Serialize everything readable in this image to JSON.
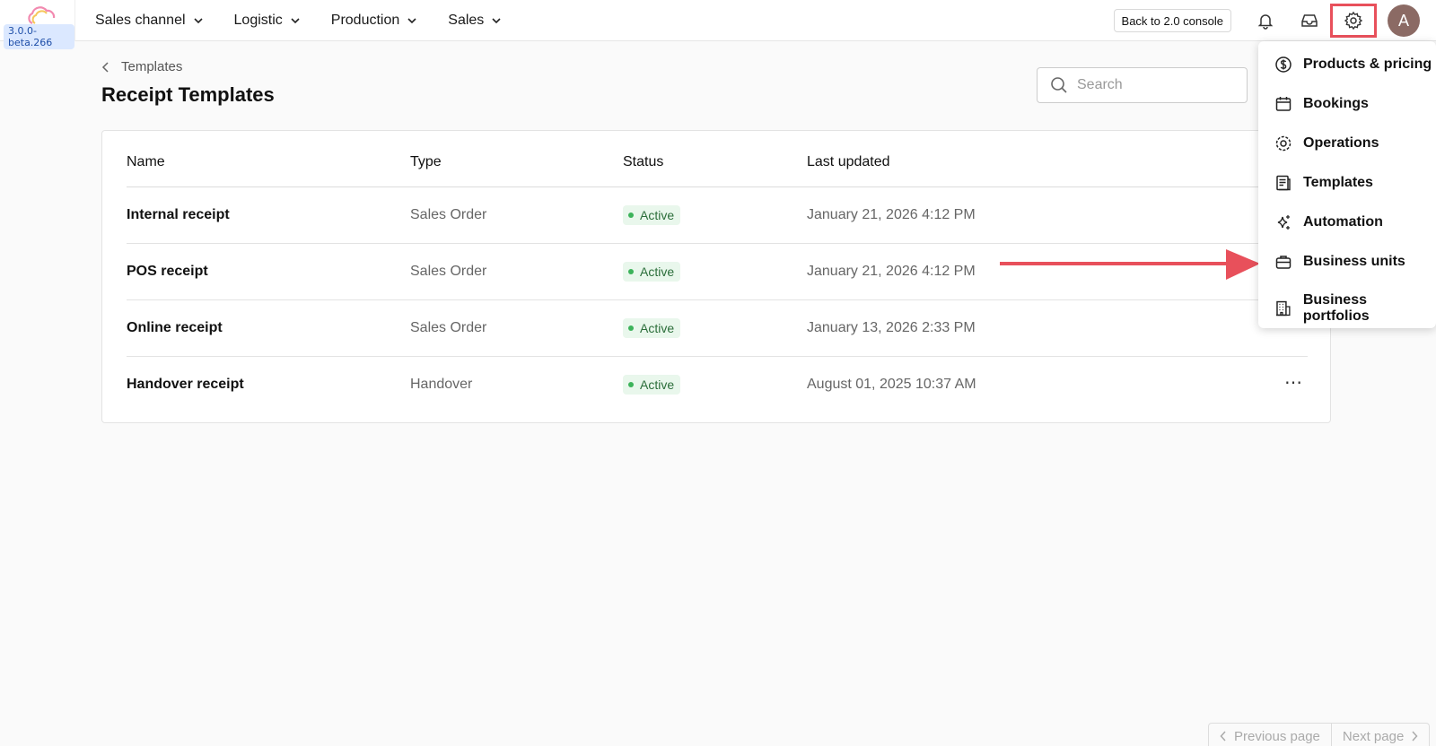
{
  "header": {
    "version": "3.0.0-beta.266",
    "nav": [
      {
        "label": "Sales channel"
      },
      {
        "label": "Logistic"
      },
      {
        "label": "Production"
      },
      {
        "label": "Sales"
      }
    ],
    "back_label": "Back to 2.0 console",
    "avatar_initial": "A"
  },
  "page": {
    "breadcrumb": "Templates",
    "title": "Receipt Templates",
    "search_placeholder": "Search"
  },
  "table": {
    "columns": [
      "Name",
      "Type",
      "Status",
      "Last updated"
    ],
    "rows": [
      {
        "name": "Internal receipt",
        "type": "Sales Order",
        "status": "Active",
        "updated": "January 21, 2026 4:12 PM"
      },
      {
        "name": "POS receipt",
        "type": "Sales Order",
        "status": "Active",
        "updated": "January 21, 2026 4:12 PM"
      },
      {
        "name": "Online receipt",
        "type": "Sales Order",
        "status": "Active",
        "updated": "January 13, 2026 2:33 PM"
      },
      {
        "name": "Handover receipt",
        "type": "Handover",
        "status": "Active",
        "updated": "August 01, 2025 10:37 AM"
      }
    ]
  },
  "menu": {
    "items": [
      {
        "label": "Products & pricing",
        "icon": "dollar-circle-icon"
      },
      {
        "label": "Bookings",
        "icon": "calendar-icon"
      },
      {
        "label": "Operations",
        "icon": "cog-icon"
      },
      {
        "label": "Templates",
        "icon": "document-icon"
      },
      {
        "label": "Automation",
        "icon": "sparkle-icon"
      },
      {
        "label": "Business units",
        "icon": "briefcase-icon"
      },
      {
        "label": "Business portfolios",
        "icon": "building-icon"
      }
    ]
  },
  "pagination": {
    "prev_label": "Previous page",
    "next_label": "Next page"
  },
  "colors": {
    "highlight": "#e8505b",
    "status_bg": "#e9f7ec",
    "status_dot": "#3cb35a"
  }
}
